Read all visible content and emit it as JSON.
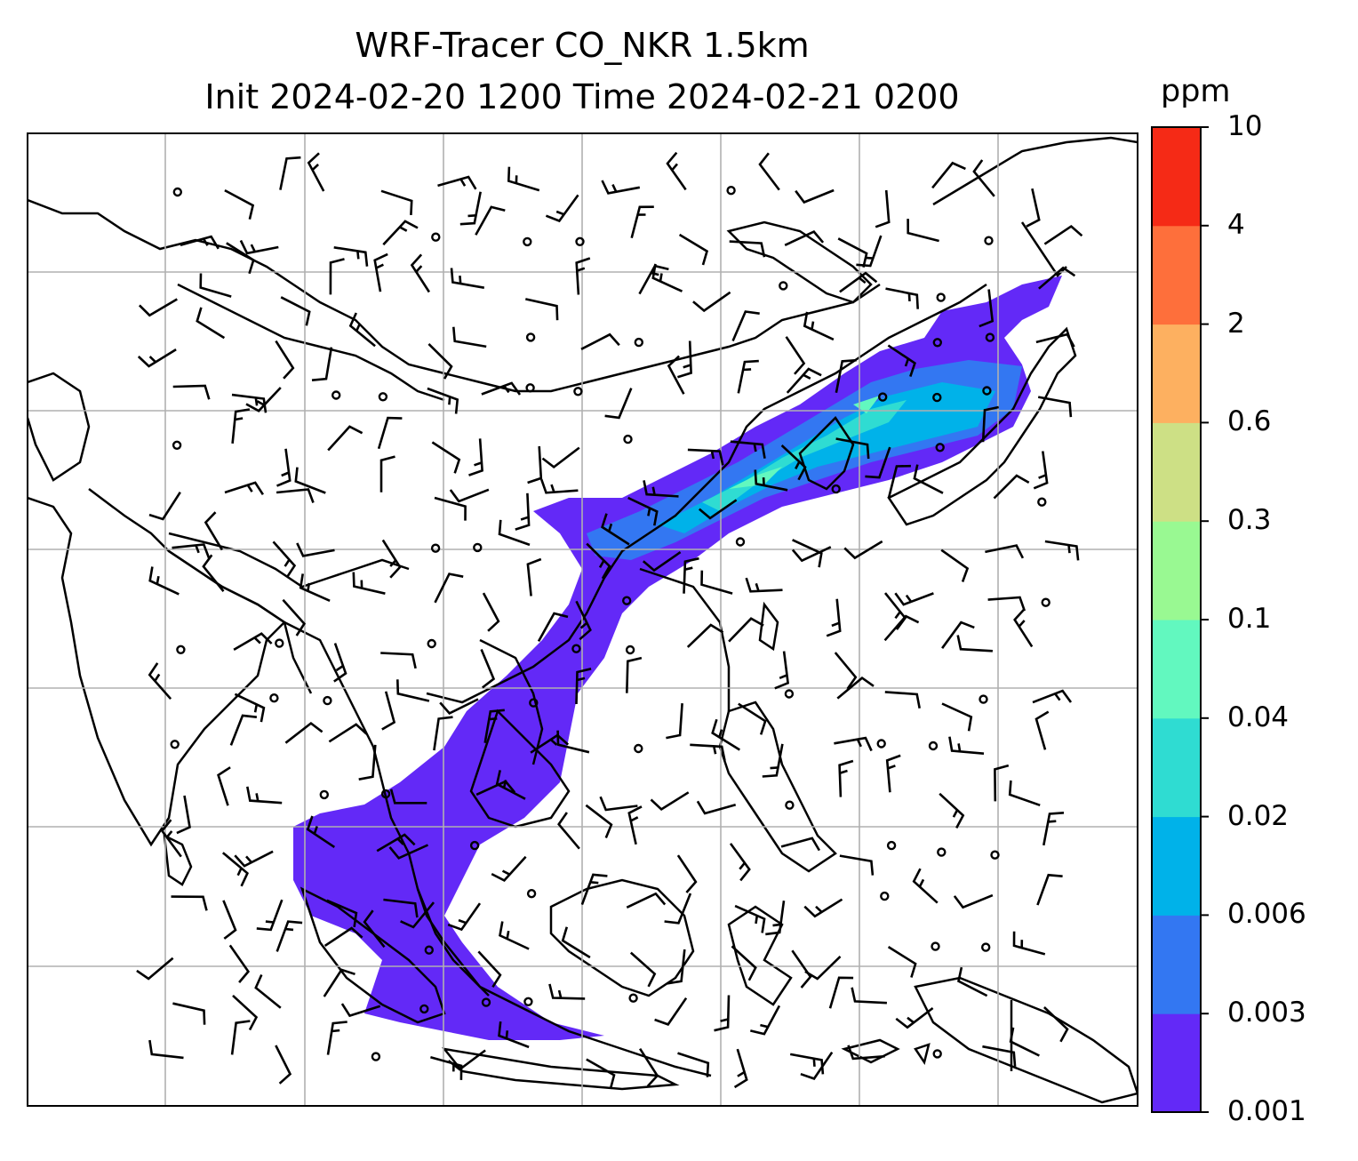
{
  "title_line1": "WRF-Tracer CO_NKR 1.5km",
  "title_line2": "Init 2024-02-20 1200 Time 2024-02-21 0200",
  "colorbar": {
    "units": "ppm",
    "levels": [
      "0.001",
      "0.003",
      "0.006",
      "0.02",
      "0.04",
      "0.1",
      "0.3",
      "0.6",
      "2",
      "4",
      "10"
    ],
    "colors": [
      "#6329f7",
      "#3377f2",
      "#00b2e9",
      "#2fdcd2",
      "#62f8bf",
      "#99f992",
      "#cde085",
      "#fdb060",
      "#fe6f3b",
      "#f52a16"
    ]
  },
  "map": {
    "gridlines": "on",
    "plume_colors": {
      "low": "#6329f7",
      "mid": "#3377f2",
      "high": "#00b2e9",
      "peak": "#2fdcd2",
      "max": "#62f8bf"
    }
  }
}
